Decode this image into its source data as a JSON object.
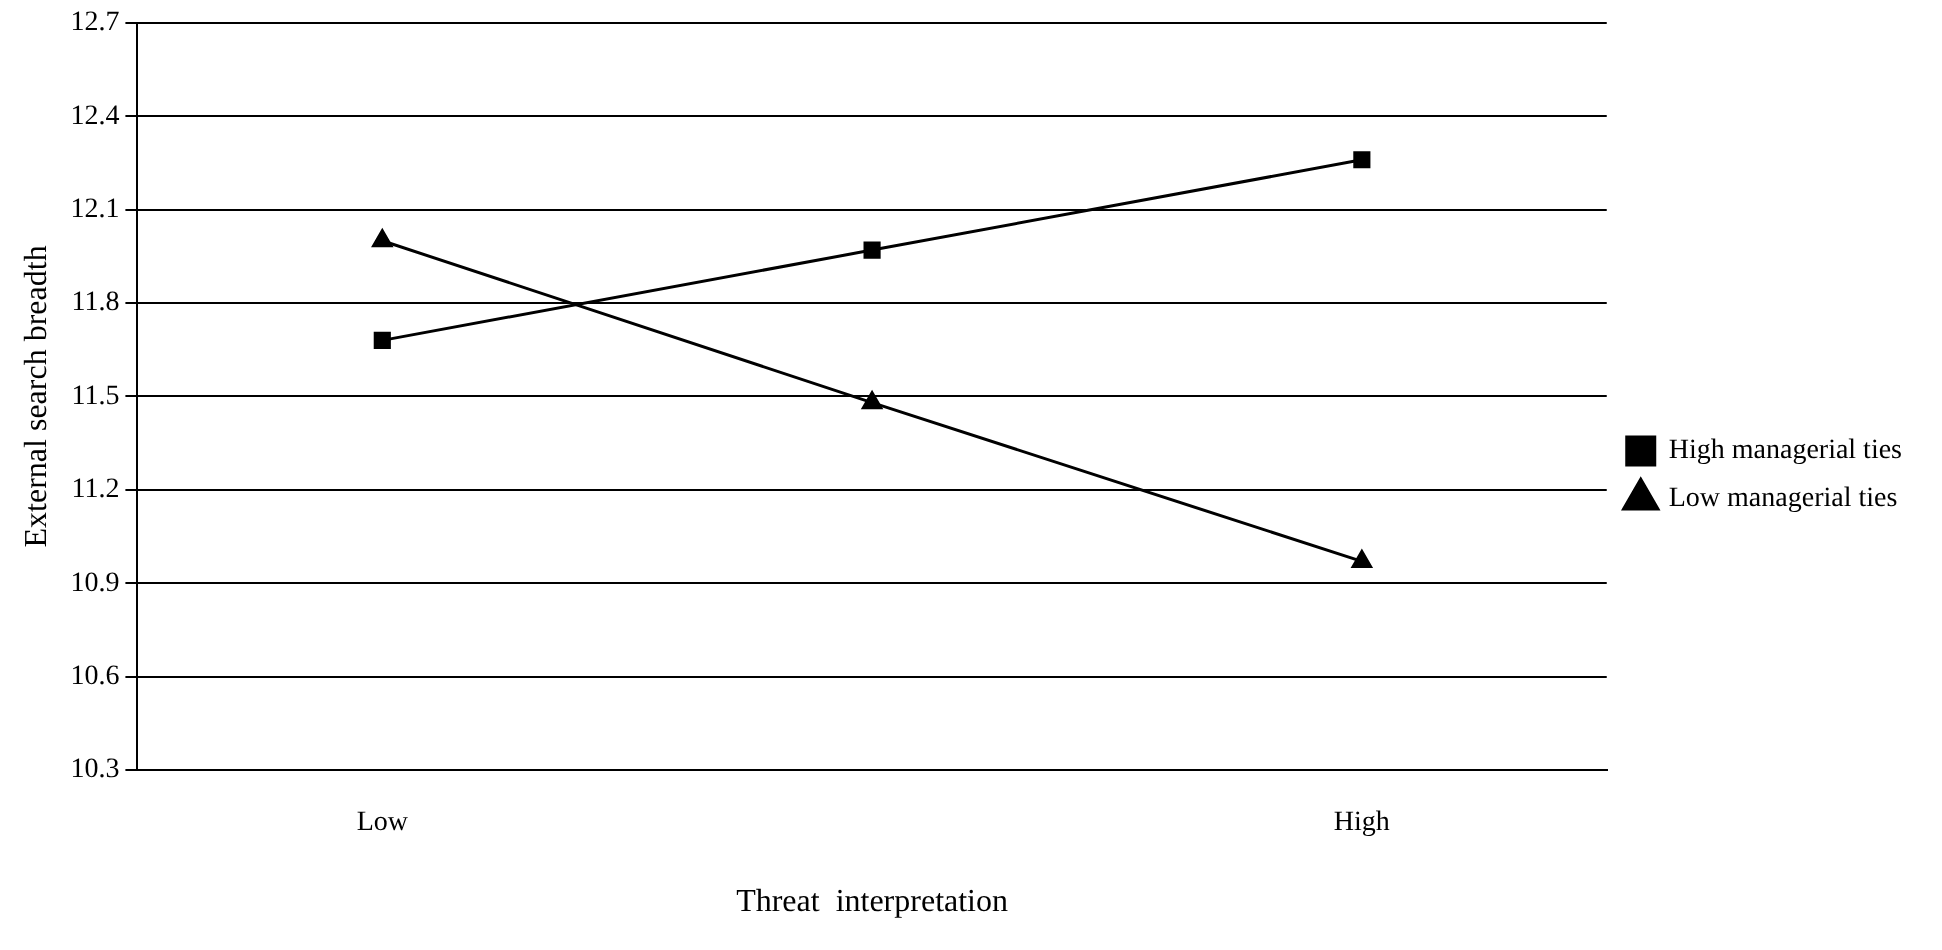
{
  "chart_data": {
    "type": "line",
    "xlabel": "Threat  interpretation",
    "ylabel": "External search breadth",
    "categories": [
      "Low",
      null,
      "High"
    ],
    "series": [
      {
        "name": "High managerial ties",
        "color": "#000000",
        "marker": "square",
        "values": [
          11.68,
          11.97,
          12.26
        ]
      },
      {
        "name": "Low managerial ties",
        "color": "#000000",
        "marker": "triangle",
        "values": [
          12.0,
          11.48,
          10.97
        ]
      }
    ],
    "ylim": [
      10.3,
      12.7
    ],
    "yticks": [
      10.3,
      10.6,
      10.9,
      11.2,
      11.5,
      11.8,
      12.1,
      12.4,
      12.7
    ],
    "grid": "y",
    "legend": "right",
    "line_style": "solid"
  }
}
